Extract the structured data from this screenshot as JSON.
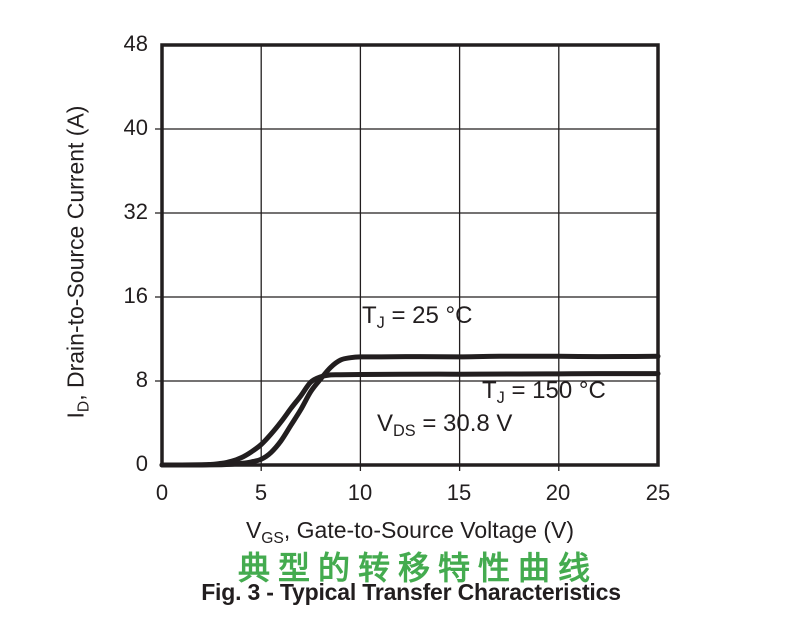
{
  "chart_data": {
    "type": "line",
    "title": "Fig. 3 - Typical Transfer Characteristics",
    "title_zh": "典型的转移特性曲线",
    "xlabel": "V_GS, Gate-to-Source Voltage (V)",
    "ylabel": "I_D, Drain-to-Source Current (A)",
    "xlabel_parts": {
      "prefix": "V",
      "sub": "GS",
      "rest": ", Gate-to-Source Voltage (V)"
    },
    "ylabel_parts": {
      "prefix": "I",
      "sub": "D",
      "rest": ", Drain-to-Source Current (A)"
    },
    "xlim": [
      0,
      25
    ],
    "x_ticks": [
      "0",
      "5",
      "10",
      "15",
      "20",
      "25"
    ],
    "y_ticks_top_to_bottom": [
      "48",
      "40",
      "32",
      "16",
      "8",
      "0"
    ],
    "y_units_per_grid_interval": 8,
    "grid": true,
    "legend_position": "none",
    "annotations": [
      {
        "text": "T_J = 25 °C",
        "parts": {
          "prefix": "T",
          "sub": "J",
          "rest": " = 25 °C"
        }
      },
      {
        "text": "T_J = 150 °C",
        "parts": {
          "prefix": "T",
          "sub": "J",
          "rest": " = 150 °C"
        }
      },
      {
        "text": "V_DS = 30.8 V",
        "parts": {
          "prefix": "V",
          "sub": "DS",
          "rest": " = 30.8 V"
        }
      }
    ],
    "series": [
      {
        "id": "tj-25c",
        "name": "TJ = 25 °C",
        "points": [
          [
            0,
            0
          ],
          [
            1,
            0
          ],
          [
            2,
            0
          ],
          [
            3,
            0.03
          ],
          [
            3.5,
            0.07
          ],
          [
            4,
            0.15
          ],
          [
            4.5,
            0.3
          ],
          [
            5,
            0.55
          ],
          [
            5.5,
            1.2
          ],
          [
            6,
            2.3
          ],
          [
            6.5,
            3.8
          ],
          [
            7,
            5.3
          ],
          [
            7.5,
            7.0
          ],
          [
            8,
            8.2
          ],
          [
            8.5,
            9.3
          ],
          [
            9,
            10.0
          ],
          [
            9.5,
            10.22
          ],
          [
            10,
            10.3
          ],
          [
            11,
            10.3
          ],
          [
            13,
            10.32
          ],
          [
            15,
            10.3
          ],
          [
            17,
            10.35
          ],
          [
            20,
            10.35
          ],
          [
            22,
            10.32
          ],
          [
            25,
            10.35
          ]
        ]
      },
      {
        "id": "tj-150c",
        "name": "TJ = 150 °C",
        "points": [
          [
            0,
            0
          ],
          [
            1,
            0
          ],
          [
            2,
            0.02
          ],
          [
            2.5,
            0.06
          ],
          [
            3,
            0.15
          ],
          [
            3.5,
            0.35
          ],
          [
            4,
            0.7
          ],
          [
            4.5,
            1.25
          ],
          [
            5,
            1.95
          ],
          [
            5.5,
            2.95
          ],
          [
            6,
            4.1
          ],
          [
            6.5,
            5.4
          ],
          [
            7,
            6.6
          ],
          [
            7.5,
            7.9
          ],
          [
            8,
            8.4
          ],
          [
            8.5,
            8.58
          ],
          [
            9,
            8.6
          ],
          [
            10,
            8.62
          ],
          [
            12,
            8.65
          ],
          [
            15,
            8.65
          ],
          [
            18,
            8.67
          ],
          [
            20,
            8.68
          ],
          [
            22,
            8.7
          ],
          [
            25,
            8.7
          ]
        ]
      }
    ],
    "colors": {
      "ink": "#221e1f",
      "title_zh_green": "#44AB4F",
      "background": "#ffffff"
    }
  }
}
